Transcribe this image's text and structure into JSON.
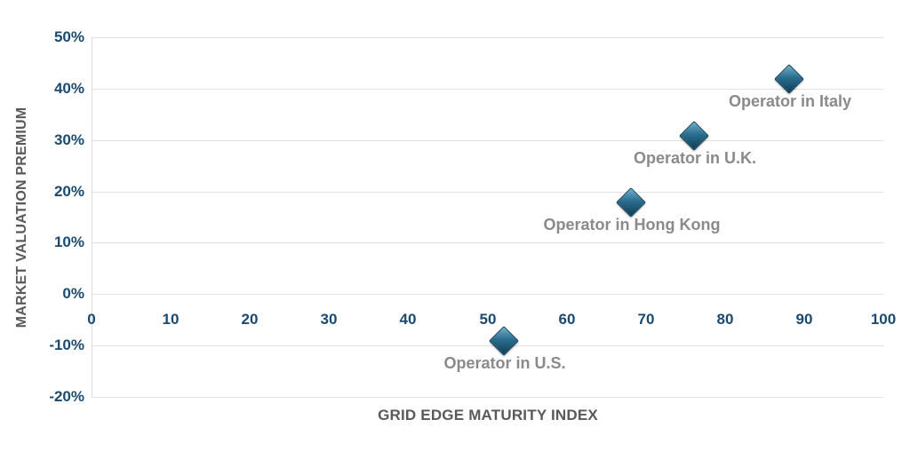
{
  "chart_data": {
    "type": "scatter",
    "title": "",
    "xlabel": "GRID EDGE MATURITY INDEX",
    "ylabel": "MARKET VALUATION PREMIUM",
    "xlim": [
      0,
      100
    ],
    "ylim": [
      -20,
      50
    ],
    "x_ticks": [
      0,
      10,
      20,
      30,
      40,
      50,
      60,
      70,
      80,
      90,
      100
    ],
    "x_tick_labels": [
      "0",
      "10",
      "20",
      "30",
      "40",
      "50",
      "60",
      "70",
      "80",
      "90",
      "100"
    ],
    "y_ticks": [
      50,
      40,
      30,
      20,
      10,
      0,
      -10,
      -20
    ],
    "y_tick_labels": [
      "50%",
      "40%",
      "30%",
      "20%",
      "10%",
      "0%",
      "-10%",
      "-20%"
    ],
    "grid": "horizontal-only",
    "legend": "none",
    "points": [
      {
        "label": "Operator in U.S.",
        "x": 52,
        "y": -9
      },
      {
        "label": "Operator in Hong Kong",
        "x": 68,
        "y": 18
      },
      {
        "label": "Operator in U.K.",
        "x": 76,
        "y": 31
      },
      {
        "label": "Operator in Italy",
        "x": 88,
        "y": 42
      }
    ],
    "marker": {
      "shape": "diamond-3d",
      "color": "#2a6d8e",
      "color_light": "#6fb0ca",
      "color_dark": "#123f58"
    },
    "colors": {
      "tick_label": "#1a4a70",
      "axis_title": "#595959",
      "point_label": "#8a8a8a",
      "gridline": "#e2e2e2",
      "background": "#ffffff"
    }
  }
}
